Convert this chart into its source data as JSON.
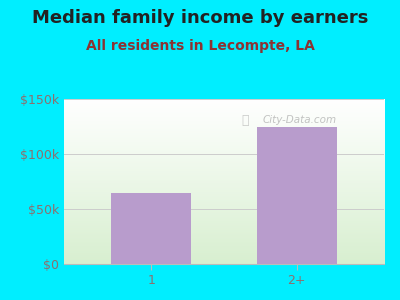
{
  "title": "Median family income by earners",
  "subtitle": "All residents in Lecompte, LA",
  "categories": [
    "1",
    "2+"
  ],
  "values": [
    65000,
    125000
  ],
  "bar_color": "#b89ccc",
  "bg_color": "#00eeff",
  "title_color": "#222222",
  "subtitle_color": "#8b3333",
  "tick_color": "#8b7070",
  "ylim": [
    0,
    150000
  ],
  "yticks": [
    0,
    50000,
    100000,
    150000
  ],
  "ytick_labels": [
    "$0",
    "$50k",
    "$100k",
    "$150k"
  ],
  "watermark": "City-Data.com",
  "title_fontsize": 13,
  "subtitle_fontsize": 10,
  "tick_fontsize": 9
}
